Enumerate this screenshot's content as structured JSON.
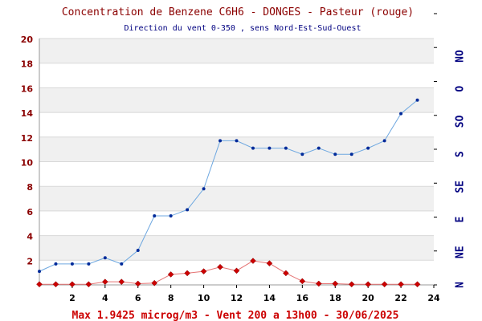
{
  "chart_data": {
    "type": "line",
    "title": "Concentration de Benzene C6H6  -   DONGES - Pasteur (rouge)",
    "subtitle": "Direction du vent 0-350 , sens Nord-Est-Sud-Ouest",
    "footer": "Max 1.9425 microg/m3 - Vent 200  a 13h00 - 30/06/2025",
    "xlim": [
      0,
      24
    ],
    "ylim": [
      0,
      20
    ],
    "x_ticks": [
      "2",
      "4",
      "6",
      "8",
      "10",
      "12",
      "14",
      "16",
      "18",
      "20",
      "22",
      "24"
    ],
    "y_ticks": [
      "2",
      "4",
      "6",
      "8",
      "10",
      "12",
      "14",
      "16",
      "18",
      "20"
    ],
    "wind_axis_labels": [
      "N",
      "NE",
      "E",
      "SE",
      "S",
      "SO",
      "O",
      "NO"
    ],
    "grid": true,
    "series": [
      {
        "role": "wind_direction",
        "color": "#6fa8e0",
        "marker_color": "#002a99",
        "x": [
          0,
          1,
          2,
          3,
          4,
          5,
          6,
          7,
          8,
          9,
          10,
          11,
          12,
          13,
          14,
          15,
          16,
          17,
          18,
          19,
          20,
          21,
          22,
          23
        ],
        "y": [
          1.1,
          1.7,
          1.7,
          1.7,
          2.2,
          1.7,
          2.8,
          5.6,
          5.6,
          6.1,
          7.8,
          11.7,
          11.7,
          11.1,
          11.1,
          11.1,
          10.6,
          11.1,
          10.6,
          10.6,
          11.1,
          11.7,
          13.9,
          15.0
        ]
      },
      {
        "role": "benzene_concentration",
        "color": "#e57373",
        "marker_color": "#cc0000",
        "x": [
          0,
          1,
          2,
          3,
          4,
          5,
          6,
          7,
          8,
          9,
          10,
          11,
          12,
          13,
          14,
          15,
          16,
          17,
          18,
          19,
          20,
          21,
          22,
          23
        ],
        "y": [
          0.05,
          0.05,
          0.05,
          0.05,
          0.25,
          0.25,
          0.1,
          0.15,
          0.85,
          0.95,
          1.1,
          1.45,
          1.15,
          1.95,
          1.75,
          0.95,
          0.3,
          0.1,
          0.1,
          0.05,
          0.05,
          0.05,
          0.05,
          0.05
        ]
      }
    ],
    "colors": {
      "title": "#8b0000",
      "subtitle": "#000080",
      "footer": "#cc0000",
      "left_axis_labels": "#8b0000",
      "right_axis_labels": "#000080",
      "band": "#f0f0f0",
      "grid": "#d8d8d8"
    }
  }
}
